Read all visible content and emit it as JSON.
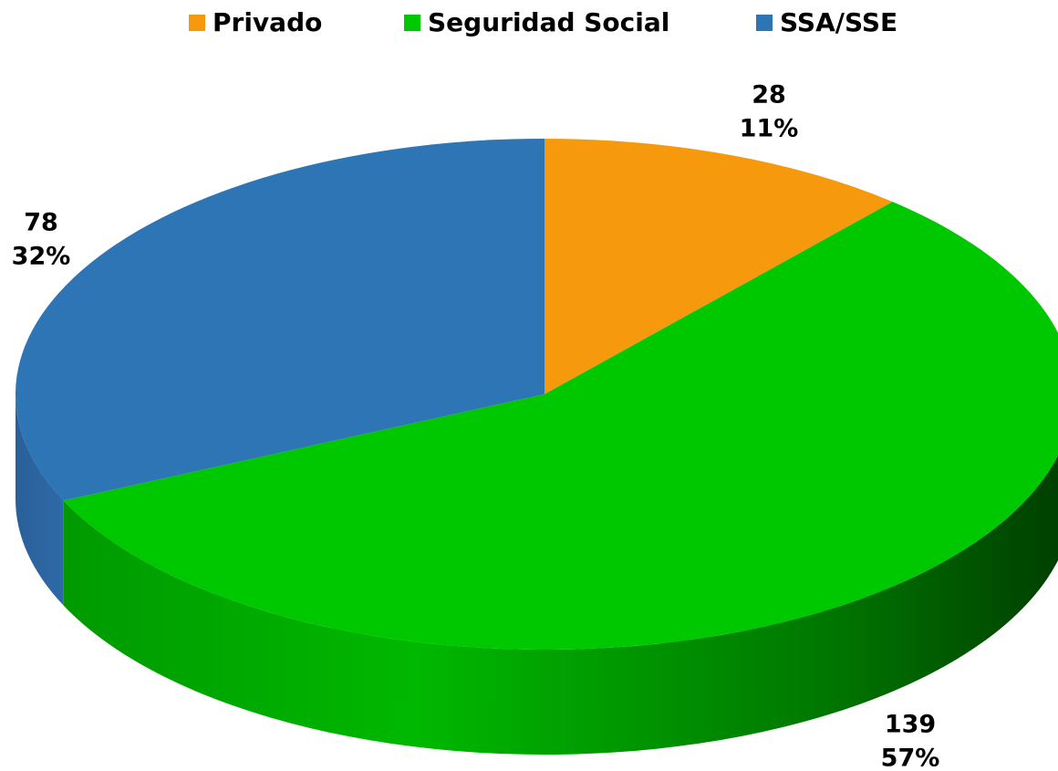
{
  "chart_data": {
    "type": "pie",
    "style": "3d",
    "categories": [
      "Privado",
      "Seguridad Social",
      "SSA/SSE"
    ],
    "values": [
      28,
      139,
      78
    ],
    "percent_labels": [
      "11%",
      "57%",
      "32%"
    ],
    "colors": [
      "#f7990c",
      "#00c800",
      "#2e75b6"
    ],
    "legend": "top"
  }
}
